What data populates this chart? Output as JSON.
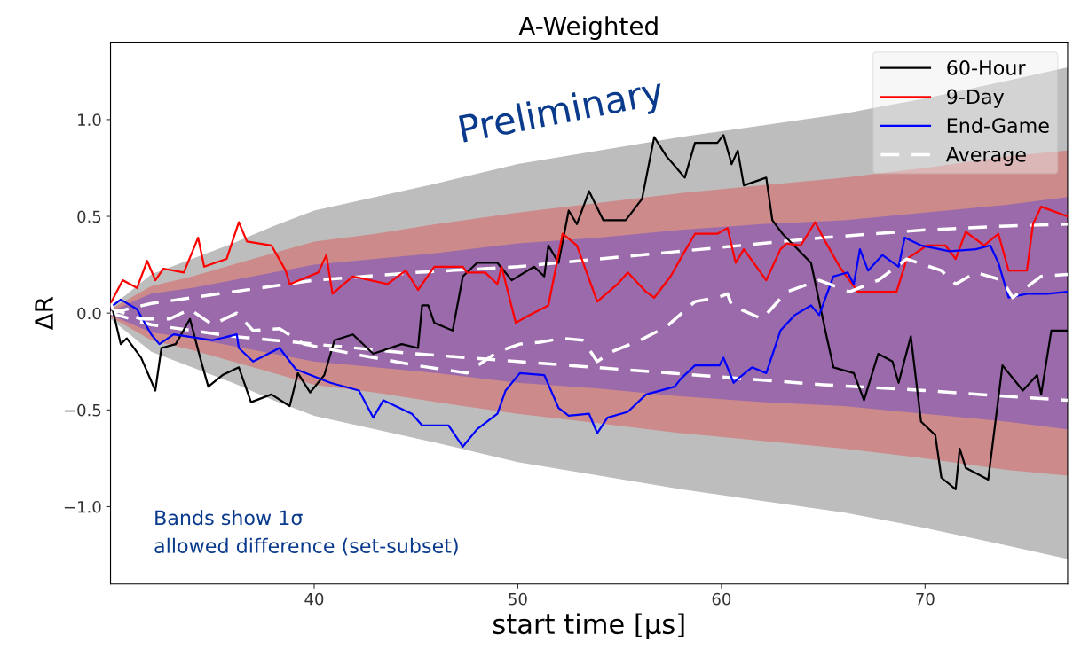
{
  "chart_data": {
    "type": "line",
    "title": "A-Weighted",
    "xlabel": "start time [μs]",
    "ylabel": "ΔR",
    "xlim": [
      30,
      77
    ],
    "ylim": [
      -1.4,
      1.4
    ],
    "xticks": [
      40,
      50,
      60,
      70
    ],
    "yticks": [
      {
        "value": -1.0,
        "label": "−1.0"
      },
      {
        "value": -0.5,
        "label": "−0.5"
      },
      {
        "value": 0,
        "label": "0.0"
      },
      {
        "value": 0.5,
        "label": "0.5"
      },
      {
        "value": 1.0,
        "label": "1.0"
      }
    ],
    "grid": false,
    "legend": "top right",
    "annotations": [
      "Preliminary",
      "Bands show 1σ\nallowed difference (set-subset)"
    ],
    "series": [
      {
        "type": "line",
        "color": "#bdbdbd",
        "x": [
          30,
          32,
          34,
          36,
          38,
          40,
          43,
          46,
          50,
          54,
          58,
          62,
          66,
          70,
          74,
          77
        ],
        "values": [
          null,
          null,
          null,
          null,
          null,
          null,
          null,
          null,
          null,
          null,
          null,
          null,
          null,
          null,
          null,
          null
        ],
        "upper": [
          0.03,
          0.2,
          0.28,
          0.36,
          0.45,
          0.53,
          0.6,
          0.67,
          0.77,
          0.84,
          0.91,
          0.97,
          1.03,
          1.11,
          1.2,
          1.27
        ],
        "lower": [
          -0.03,
          -0.2,
          -0.28,
          -0.36,
          -0.45,
          -0.53,
          -0.6,
          -0.67,
          -0.77,
          -0.84,
          -0.91,
          -0.97,
          -1.03,
          -1.11,
          -1.2,
          -1.27
        ]
      },
      {
        "type": "line",
        "color": "#cd8a8a",
        "x": [
          30,
          32,
          34,
          36,
          38,
          40,
          43,
          46,
          50,
          54,
          58,
          62,
          66,
          70,
          74,
          77
        ],
        "values": [
          null,
          null,
          null,
          null,
          null,
          null,
          null,
          null,
          null,
          null,
          null,
          null,
          null,
          null,
          null,
          null
        ],
        "upper": [
          0.02,
          0.14,
          0.19,
          0.25,
          0.31,
          0.37,
          0.41,
          0.46,
          0.52,
          0.57,
          0.62,
          0.66,
          0.7,
          0.75,
          0.81,
          0.84
        ],
        "lower": [
          -0.02,
          -0.14,
          -0.19,
          -0.25,
          -0.31,
          -0.37,
          -0.41,
          -0.46,
          -0.52,
          -0.57,
          -0.62,
          -0.66,
          -0.7,
          -0.75,
          -0.81,
          -0.84
        ]
      },
      {
        "type": "line",
        "color": "#9b6aab",
        "x": [
          30,
          32,
          34,
          36,
          38,
          40,
          43,
          46,
          50,
          54,
          58,
          62,
          66,
          70,
          74,
          77
        ],
        "values": [
          null,
          null,
          null,
          null,
          null,
          null,
          null,
          null,
          null,
          null,
          null,
          null,
          null,
          null,
          null,
          null
        ],
        "upper": [
          0.01,
          0.1,
          0.13,
          0.17,
          0.21,
          0.25,
          0.28,
          0.31,
          0.36,
          0.39,
          0.43,
          0.46,
          0.48,
          0.52,
          0.56,
          0.6
        ],
        "lower": [
          -0.01,
          -0.1,
          -0.13,
          -0.17,
          -0.21,
          -0.25,
          -0.28,
          -0.31,
          -0.36,
          -0.39,
          -0.43,
          -0.46,
          -0.48,
          -0.52,
          -0.56,
          -0.6
        ]
      },
      {
        "type": "line",
        "line_style": "dashed",
        "color": "#ffffff",
        "x": [
          30,
          32,
          36,
          40,
          45,
          50,
          55,
          60,
          65,
          70,
          74,
          77
        ],
        "values": [
          0.0,
          0.05,
          0.11,
          0.17,
          0.21,
          0.24,
          0.29,
          0.34,
          0.39,
          0.43,
          0.45,
          0.46
        ]
      },
      {
        "type": "line",
        "line_style": "dashed",
        "color": "#ffffff",
        "x": [
          30,
          32,
          36,
          40,
          45,
          50,
          55,
          60,
          65,
          70,
          74,
          77
        ],
        "values": [
          0.0,
          -0.06,
          -0.12,
          -0.16,
          -0.21,
          -0.25,
          -0.29,
          -0.33,
          -0.37,
          -0.4,
          -0.43,
          -0.45
        ]
      },
      {
        "name": "60-Hour",
        "color": "#000000",
        "line_style": "solid",
        "x": [
          30.0,
          30.1,
          30.5,
          30.8,
          31.5,
          32.2,
          32.5,
          33.2,
          33.9,
          34.4,
          34.8,
          35.5,
          36.3,
          36.9,
          37.9,
          38.8,
          39.2,
          39.8,
          40.5,
          41.0,
          41.9,
          42.9,
          44.3,
          45.1,
          45.3,
          45.6,
          45.9,
          46.8,
          47.3,
          48.0,
          49.0,
          49.7,
          50.8,
          51.3,
          51.5,
          52.0,
          52.5,
          52.9,
          53.5,
          54.2,
          55.3,
          56.1,
          56.7,
          57.3,
          58.2,
          58.7,
          59.8,
          60.1,
          60.5,
          60.8,
          61.1,
          62.2,
          62.5,
          63.0,
          64.4,
          65.1,
          65.5,
          66.5,
          67.0,
          67.7,
          68.4,
          68.7,
          69.3,
          69.8,
          70.5,
          70.8,
          71.5,
          71.7,
          72.0,
          73.1,
          73.8,
          74.8,
          75.5,
          75.7,
          76.2,
          77.0
        ],
        "values": [
          0.05,
          0.02,
          -0.16,
          -0.13,
          -0.23,
          -0.4,
          -0.18,
          -0.16,
          -0.03,
          -0.23,
          -0.38,
          -0.32,
          -0.28,
          -0.46,
          -0.42,
          -0.48,
          -0.31,
          -0.41,
          -0.32,
          -0.14,
          -0.11,
          -0.21,
          -0.16,
          -0.18,
          0.04,
          0.04,
          -0.05,
          -0.09,
          0.19,
          0.26,
          0.26,
          0.17,
          0.24,
          0.19,
          0.35,
          0.26,
          0.53,
          0.46,
          0.63,
          0.48,
          0.48,
          0.59,
          0.91,
          0.81,
          0.7,
          0.88,
          0.88,
          0.92,
          0.77,
          0.84,
          0.66,
          0.7,
          0.48,
          0.41,
          0.26,
          -0.09,
          -0.28,
          -0.31,
          -0.45,
          -0.21,
          -0.25,
          -0.36,
          -0.12,
          -0.56,
          -0.63,
          -0.85,
          -0.91,
          -0.7,
          -0.8,
          -0.86,
          -0.27,
          -0.4,
          -0.32,
          -0.42,
          -0.09,
          -0.09
        ]
      },
      {
        "name": "9-Day",
        "color": "#ff0000",
        "line_style": "solid",
        "x": [
          30.0,
          30.6,
          31.3,
          31.8,
          32.2,
          32.6,
          33.6,
          34.3,
          34.6,
          35.7,
          36.3,
          36.7,
          37.9,
          38.6,
          38.8,
          40.2,
          40.6,
          40.9,
          41.9,
          43.6,
          44.5,
          45.1,
          45.9,
          47.3,
          47.5,
          48.4,
          49.0,
          49.2,
          49.9,
          50.4,
          51.5,
          52.2,
          52.9,
          53.9,
          54.9,
          55.4,
          56.3,
          56.7,
          57.5,
          58.2,
          58.7,
          59.8,
          60.3,
          60.7,
          61.1,
          62.2,
          62.9,
          63.2,
          63.9,
          64.6,
          65.1,
          65.8,
          66.7,
          68.6,
          69.1,
          70.1,
          71.0,
          71.5,
          72.0,
          72.9,
          73.6,
          74.1,
          75.0,
          75.3,
          75.7,
          77.0
        ],
        "values": [
          0.05,
          0.17,
          0.13,
          0.27,
          0.17,
          0.23,
          0.21,
          0.39,
          0.24,
          0.28,
          0.47,
          0.37,
          0.35,
          0.22,
          0.15,
          0.21,
          0.3,
          0.1,
          0.19,
          0.15,
          0.22,
          0.12,
          0.24,
          0.24,
          0.21,
          0.21,
          0.15,
          0.24,
          -0.05,
          -0.02,
          0.04,
          0.41,
          0.35,
          0.06,
          0.15,
          0.21,
          0.11,
          0.08,
          0.19,
          0.32,
          0.41,
          0.41,
          0.44,
          0.26,
          0.33,
          0.17,
          0.33,
          0.36,
          0.35,
          0.47,
          0.37,
          0.24,
          0.11,
          0.11,
          0.28,
          0.35,
          0.35,
          0.28,
          0.42,
          0.35,
          0.41,
          0.22,
          0.22,
          0.46,
          0.55,
          0.5
        ]
      },
      {
        "name": "End-Game",
        "color": "#0000ff",
        "line_style": "solid",
        "x": [
          30.0,
          30.5,
          31.3,
          32.0,
          32.4,
          33.1,
          35.0,
          36.2,
          36.3,
          37.0,
          38.3,
          39.1,
          40.8,
          42.2,
          42.9,
          43.4,
          44.8,
          45.3,
          46.6,
          47.3,
          48.0,
          49.0,
          49.4,
          50.1,
          51.3,
          52.0,
          52.5,
          53.5,
          53.9,
          54.4,
          55.4,
          56.3,
          57.7,
          58.0,
          58.7,
          59.9,
          60.1,
          60.6,
          60.8,
          61.5,
          62.2,
          62.9,
          63.6,
          64.4,
          64.8,
          65.5,
          66.2,
          66.5,
          66.8,
          67.2,
          67.9,
          68.7,
          69.0,
          69.8,
          71.2,
          72.5,
          73.2,
          73.6,
          74.1,
          75.0,
          76.0,
          77.0
        ],
        "values": [
          0.03,
          0.07,
          0.02,
          -0.11,
          -0.16,
          -0.11,
          -0.14,
          -0.11,
          -0.18,
          -0.25,
          -0.18,
          -0.29,
          -0.36,
          -0.4,
          -0.54,
          -0.45,
          -0.52,
          -0.58,
          -0.58,
          -0.69,
          -0.6,
          -0.52,
          -0.4,
          -0.31,
          -0.32,
          -0.49,
          -0.53,
          -0.52,
          -0.62,
          -0.54,
          -0.51,
          -0.42,
          -0.38,
          -0.34,
          -0.27,
          -0.27,
          -0.23,
          -0.36,
          -0.34,
          -0.28,
          -0.31,
          -0.09,
          -0.01,
          0.04,
          -0.01,
          0.19,
          0.21,
          0.15,
          0.33,
          0.22,
          0.3,
          0.24,
          0.39,
          0.35,
          0.32,
          0.33,
          0.35,
          0.26,
          0.08,
          0.1,
          0.1,
          0.11
        ]
      },
      {
        "name": "Average",
        "color": "#ffffff",
        "line_style": "dashed",
        "x": [
          30.0,
          30.13,
          31.5,
          32.9,
          33.9,
          35.0,
          36.2,
          37.0,
          38.3,
          39.5,
          41.9,
          45.0,
          47.5,
          49.0,
          50.1,
          51.1,
          52.2,
          53.2,
          53.9,
          54.6,
          56.0,
          57.3,
          58.7,
          59.8,
          60.3,
          60.5,
          62.0,
          63.2,
          64.8,
          66.3,
          67.7,
          69.1,
          70.8,
          71.5,
          72.5,
          73.8,
          74.3,
          75.7,
          77.0
        ],
        "values": [
          0.05,
          0.02,
          -0.03,
          -0.03,
          0.02,
          -0.06,
          0.0,
          -0.09,
          -0.08,
          -0.16,
          -0.21,
          -0.27,
          -0.31,
          -0.2,
          -0.16,
          -0.15,
          -0.13,
          -0.14,
          -0.25,
          -0.2,
          -0.14,
          -0.07,
          0.06,
          0.08,
          0.1,
          0.04,
          -0.03,
          0.11,
          0.17,
          0.11,
          0.17,
          0.28,
          0.22,
          0.15,
          0.21,
          0.17,
          0.08,
          0.19,
          0.2
        ]
      }
    ]
  }
}
